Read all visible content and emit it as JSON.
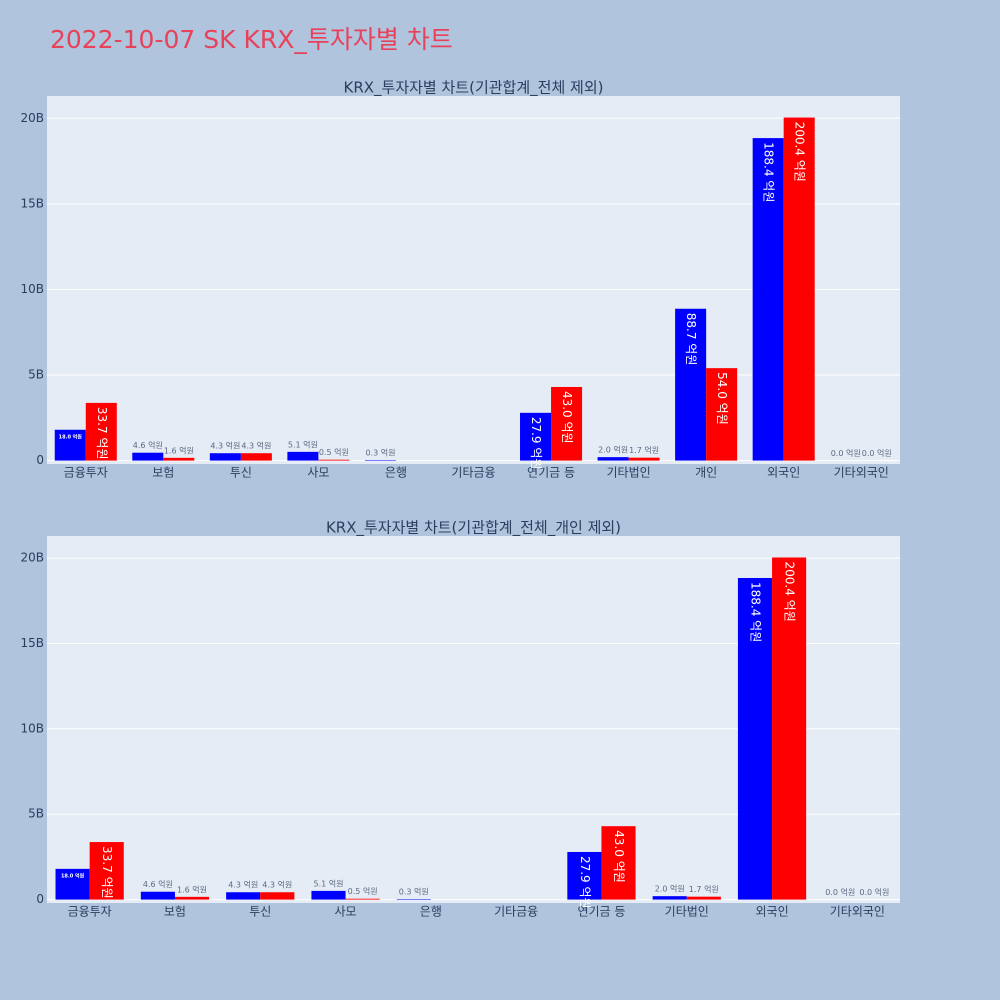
{
  "title": "2022-10-07 SK KRX_투자자별 차트",
  "chart_data": [
    {
      "type": "bar",
      "title": "KRX_투자자별 차트(기관합계_전체 제외)",
      "categories": [
        "금융투자",
        "보험",
        "투신",
        "사모",
        "은행",
        "기타금융",
        "연기금 등",
        "기타법인",
        "개인",
        "외국인",
        "기타외국인"
      ],
      "series": [
        {
          "color": "#0000ff",
          "values": [
            1800000000,
            460000000,
            430000000,
            510000000,
            30000000,
            null,
            2790000000,
            200000000,
            8870000000,
            18840000000,
            0
          ],
          "value_labels": [
            "18.0 억원",
            "4.6 억원",
            "4.3 억원",
            "5.1 억원",
            "0.3 억원",
            null,
            "27.9 억원",
            "2.0 억원",
            "88.7 억원",
            "188.4 억원",
            "0.0 억원"
          ]
        },
        {
          "color": "#ff0000",
          "values": [
            3370000000,
            160000000,
            430000000,
            50000000,
            null,
            null,
            4300000000,
            170000000,
            5400000000,
            20040000000,
            0
          ],
          "value_labels": [
            "33.7 억원",
            "1.6 억원",
            "4.3 억원",
            "0.5 억원",
            null,
            null,
            "43.0 억원",
            "1.7 억원",
            "54.0 억원",
            "200.4 억원",
            "0.0 억원"
          ]
        }
      ],
      "ylim": [
        -200000000,
        21300000000
      ],
      "yticks": [
        0,
        {
          "value": 5000000000,
          "label": "5B"
        },
        {
          "value": 10000000000,
          "label": "10B"
        },
        {
          "value": 15000000000,
          "label": "15B"
        },
        {
          "value": 20000000000,
          "label": "20B"
        }
      ],
      "grid": true
    },
    {
      "type": "bar",
      "title": "KRX_투자자별 차트(기관합계_전체_개인 제외)",
      "categories": [
        "금융투자",
        "보험",
        "투신",
        "사모",
        "은행",
        "기타금융",
        "연기금 등",
        "기타법인",
        "외국인",
        "기타외국인"
      ],
      "series": [
        {
          "color": "#0000ff",
          "values": [
            1800000000,
            460000000,
            430000000,
            510000000,
            30000000,
            null,
            2790000000,
            200000000,
            18840000000,
            0
          ],
          "value_labels": [
            "18.0 억원",
            "4.6 억원",
            "4.3 억원",
            "5.1 억원",
            "0.3 억원",
            null,
            "27.9 억원",
            "2.0 억원",
            "188.4 억원",
            "0.0 억원"
          ]
        },
        {
          "color": "#ff0000",
          "values": [
            3370000000,
            160000000,
            430000000,
            50000000,
            null,
            null,
            4300000000,
            170000000,
            20040000000,
            0
          ],
          "value_labels": [
            "33.7 억원",
            "1.6 억원",
            "4.3 억원",
            "0.5 억원",
            null,
            null,
            "43.0 억원",
            "1.7 억원",
            "200.4 억원",
            "0.0 억원"
          ]
        }
      ],
      "ylim": [
        -200000000,
        21300000000
      ],
      "yticks": [
        0,
        {
          "value": 5000000000,
          "label": "5B"
        },
        {
          "value": 10000000000,
          "label": "10B"
        },
        {
          "value": 15000000000,
          "label": "15B"
        },
        {
          "value": 20000000000,
          "label": "20B"
        }
      ],
      "grid": true
    }
  ]
}
